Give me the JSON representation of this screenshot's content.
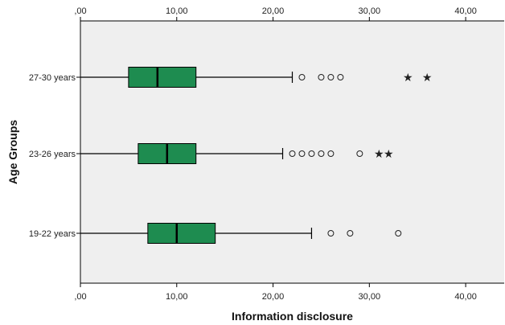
{
  "chart_data": {
    "type": "boxplot",
    "orientation": "horizontal",
    "xlabel": "Information disclosure",
    "ylabel": "Age Groups",
    "xlim": [
      0,
      44
    ],
    "x_ticks": [
      0,
      10,
      20,
      30,
      40
    ],
    "x_tick_labels": [
      ",00",
      "10,00",
      "20,00",
      "30,00",
      "40,00"
    ],
    "plot_background": "#efefef",
    "box_fill": "#1e8c50",
    "grid": false,
    "groups": [
      {
        "label": "27-30 years",
        "whisker_low": 0,
        "q1": 5,
        "median": 8,
        "q3": 12,
        "whisker_high": 22,
        "outliers": [
          23,
          25,
          26,
          27
        ],
        "extremes": [
          34,
          36
        ]
      },
      {
        "label": "23-26 years",
        "whisker_low": 0,
        "q1": 6,
        "median": 9,
        "q3": 12,
        "whisker_high": 21,
        "outliers": [
          22,
          23,
          24,
          25,
          26,
          29
        ],
        "extremes": [
          31,
          32
        ]
      },
      {
        "label": "19-22 years",
        "whisker_low": 0,
        "q1": 7,
        "median": 10,
        "q3": 14,
        "whisker_high": 24,
        "outliers": [
          26,
          28,
          33
        ],
        "extremes": []
      }
    ]
  }
}
